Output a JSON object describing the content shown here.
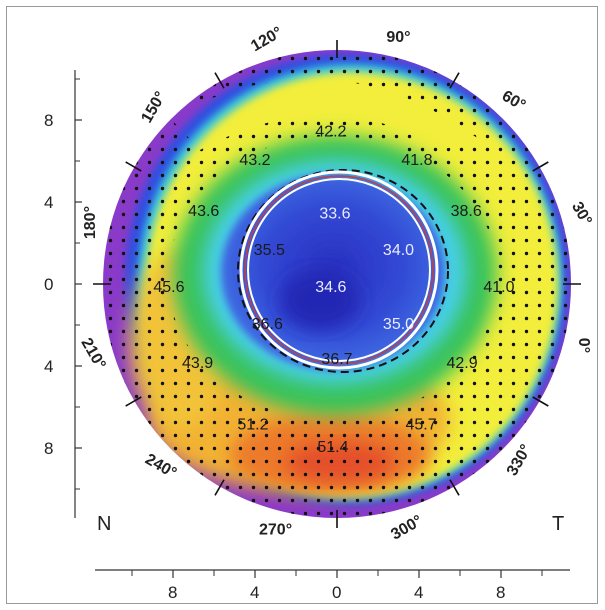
{
  "side_labels": {
    "nasal": "N",
    "temporal": "T"
  },
  "angle_labels": [
    {
      "text": "90°",
      "deg": 90
    },
    {
      "text": "60°",
      "deg": 60
    },
    {
      "text": "30°",
      "deg": 30
    },
    {
      "text": "0°",
      "deg": 0
    },
    {
      "text": "330°",
      "deg": 330
    },
    {
      "text": "300°",
      "deg": 300
    },
    {
      "text": "270°",
      "deg": 270
    },
    {
      "text": "240°",
      "deg": 240
    },
    {
      "text": "210°",
      "deg": 210
    },
    {
      "text": "180°",
      "deg": 180
    },
    {
      "text": "150°",
      "deg": 150
    },
    {
      "text": "120°",
      "deg": 120
    }
  ],
  "y_axis_ticks": [
    {
      "text": "8",
      "v": 8
    },
    {
      "text": "4",
      "v": 4
    },
    {
      "text": "0",
      "v": 0
    },
    {
      "text": "4",
      "v": -4
    },
    {
      "text": "8",
      "v": -8
    }
  ],
  "x_axis_ticks": [
    {
      "text": "8",
      "v": -8
    },
    {
      "text": "4",
      "v": -4
    },
    {
      "text": "0",
      "v": 0
    },
    {
      "text": "4",
      "v": 4
    },
    {
      "text": "8",
      "v": 8
    }
  ],
  "map_values": [
    {
      "text": "42.2",
      "x": -0.3,
      "y": 7.5,
      "tone": "dark"
    },
    {
      "text": "43.2",
      "x": -4.0,
      "y": 6.1,
      "tone": "dark"
    },
    {
      "text": "41.8",
      "x": 3.9,
      "y": 6.1,
      "tone": "dark"
    },
    {
      "text": "43.6",
      "x": -6.5,
      "y": 3.6,
      "tone": "dark"
    },
    {
      "text": "33.6",
      "x": -0.1,
      "y": 3.5,
      "tone": "light"
    },
    {
      "text": "38.6",
      "x": 6.3,
      "y": 3.6,
      "tone": "dark"
    },
    {
      "text": "35.5",
      "x": -3.3,
      "y": 1.7,
      "tone": "dark"
    },
    {
      "text": "34.0",
      "x": 3.0,
      "y": 1.7,
      "tone": "light"
    },
    {
      "text": "45.6",
      "x": -8.2,
      "y": -0.1,
      "tone": "dark"
    },
    {
      "text": "34.6",
      "x": -0.3,
      "y": -0.1,
      "tone": "light"
    },
    {
      "text": "41.0",
      "x": 7.9,
      "y": -0.1,
      "tone": "dark"
    },
    {
      "text": "36.6",
      "x": -3.4,
      "y": -1.9,
      "tone": "dark"
    },
    {
      "text": "35.0",
      "x": 3.0,
      "y": -1.9,
      "tone": "light"
    },
    {
      "text": "36.7",
      "x": 0.0,
      "y": -3.6,
      "tone": "dark"
    },
    {
      "text": "43.9",
      "x": -6.8,
      "y": -3.8,
      "tone": "dark"
    },
    {
      "text": "42.9",
      "x": 6.1,
      "y": -3.8,
      "tone": "dark"
    },
    {
      "text": "51.2",
      "x": -4.1,
      "y": -6.8,
      "tone": "dark"
    },
    {
      "text": "45.7",
      "x": 4.1,
      "y": -6.8,
      "tone": "dark"
    },
    {
      "text": "51.4",
      "x": -0.2,
      "y": -7.9,
      "tone": "dark"
    }
  ],
  "colors": {
    "center": "#2b34c8",
    "inner": "#3f63df",
    "cyan": "#3fd0e6",
    "green": "#33c45a",
    "yellow": "#f4f03a",
    "orange": "#f0a030",
    "red": "#e8502a",
    "blue_edge": "#2f4fe0",
    "purple_edge": "#8a3ac8"
  }
}
